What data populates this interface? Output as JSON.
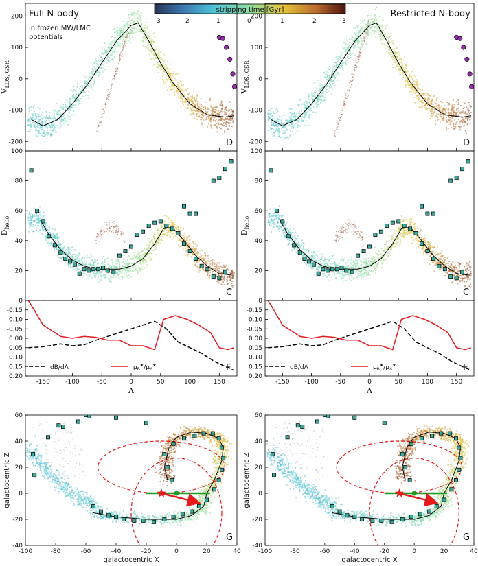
{
  "colorbar": {
    "title": "stripping time [Gyr]",
    "left_ticks": [
      "3",
      "2",
      "1"
    ],
    "right_ticks": [
      "0",
      "1",
      "2",
      "3"
    ],
    "stops": [
      "#2a3356",
      "#3c78b0",
      "#4cc0d8",
      "#8fe0a0",
      "#e6c23a",
      "#b86a2c",
      "#4a1410"
    ]
  },
  "columns": [
    {
      "id": "left",
      "title": "Full N-body",
      "subtitle_lines": [
        "in frozen MW/LMC",
        "potentials"
      ]
    },
    {
      "id": "right",
      "title": "Restricted N-body",
      "subtitle_lines": []
    }
  ],
  "panels": {
    "D": {
      "letter": "D",
      "ylabel": "V",
      "ylabel_sub": "LOS, GSR",
      "yticks": [
        -200,
        -100,
        0,
        100,
        200
      ]
    },
    "C": {
      "letter": "C",
      "ylabel": "D",
      "ylabel_sub": "helio",
      "yticks": [
        0,
        20,
        40,
        60,
        80,
        100
      ]
    },
    "F": {
      "letter": "F",
      "yticks": [
        -0.15,
        -0.1,
        -0.05,
        0.0,
        0.05,
        0.1,
        0.15,
        0.2
      ],
      "ytick_labels": [
        "-0.15",
        "-0.10",
        "-0.05",
        "0.00",
        "0.05",
        "0.10",
        "0.15",
        "0.20"
      ],
      "legend_dbdl": "dB/dΛ",
      "legend_mu": "μ",
      "xlabel": "Λ"
    },
    "G": {
      "letter": "G",
      "xlabel": "galactocentric X",
      "ylabel": "galactocentric Z",
      "xticks": [
        -100,
        -80,
        -60,
        -40,
        -20,
        0,
        20,
        40
      ],
      "yticks": [
        -40,
        -20,
        0,
        20,
        40,
        60
      ]
    }
  },
  "lambda_ticks": [
    -150,
    -100,
    -50,
    0,
    50,
    100,
    150
  ],
  "chart_data": [
    {
      "type": "scatter",
      "panel": "D",
      "title": "V_LOS,GSR vs Λ",
      "xlim": [
        -180,
        180
      ],
      "ylim": [
        -230,
        240
      ],
      "track_x": [
        -170,
        -150,
        -125,
        -100,
        -75,
        -50,
        -25,
        0,
        12,
        30,
        50,
        70,
        100,
        130,
        160,
        175
      ],
      "track_y": [
        -130,
        -150,
        -130,
        -80,
        -20,
        50,
        120,
        170,
        178,
        120,
        50,
        -10,
        -80,
        -115,
        -122,
        -118
      ],
      "observed_x": [
        150,
        156,
        162,
        168,
        173,
        176
      ],
      "observed_y": [
        132,
        128,
        100,
        62,
        15,
        -25
      ]
    },
    {
      "type": "scatter",
      "panel": "C",
      "title": "D_helio vs Λ",
      "xlim": [
        -180,
        180
      ],
      "ylim": [
        0,
        100
      ],
      "track_x": [
        -155,
        -140,
        -120,
        -100,
        -80,
        -60,
        -40,
        -20,
        0,
        20,
        40,
        55,
        70,
        90,
        110,
        130,
        150,
        170
      ],
      "track_y": [
        54,
        44,
        34,
        27,
        23,
        21,
        21,
        21,
        23,
        28,
        38,
        48,
        49,
        40,
        30,
        23,
        18,
        17
      ],
      "observed_x": [
        -170,
        -160,
        -150,
        -140,
        -130,
        -120,
        -112,
        -104,
        -96,
        -88,
        -80,
        -72,
        -64,
        -56,
        -48,
        -40,
        -30,
        -20,
        -10,
        0,
        10,
        20,
        30,
        40,
        50,
        60,
        70,
        80,
        90,
        100,
        110,
        120,
        130,
        140,
        150,
        160,
        170
      ],
      "observed_y": [
        87,
        60,
        53,
        43,
        37,
        32,
        28,
        26,
        24,
        18,
        21,
        20,
        21,
        21,
        22,
        20,
        19,
        30,
        33,
        36,
        44,
        46,
        50,
        52,
        53,
        50,
        48,
        45,
        38,
        33,
        28,
        23,
        21,
        16,
        15,
        19,
        93
      ],
      "upper_x": [
        90,
        100,
        110,
        140,
        150,
        160,
        170
      ],
      "upper_y": [
        63,
        58,
        58,
        80,
        82,
        88,
        93
      ]
    },
    {
      "type": "line",
      "panel": "F",
      "xlim": [
        -180,
        180
      ],
      "ylim": [
        0.2,
        -0.2
      ],
      "series": [
        {
          "name": "dB/dΛ",
          "style": "dashed",
          "color": "#000000",
          "x": [
            -175,
            -150,
            -120,
            -100,
            -80,
            -60,
            -40,
            -20,
            0,
            20,
            40,
            60,
            80,
            100,
            120,
            140,
            160,
            175
          ],
          "y": [
            0.05,
            0.045,
            0.03,
            0.04,
            0.035,
            0.01,
            -0.01,
            -0.03,
            -0.05,
            -0.07,
            -0.09,
            -0.05,
            0.02,
            0.05,
            0.08,
            0.12,
            0.15,
            0.17
          ]
        },
        {
          "name": "μB*/μΛ*",
          "style": "solid",
          "color": "#e41a1c",
          "x": [
            -175,
            -165,
            -150,
            -135,
            -120,
            -100,
            -80,
            -60,
            -40,
            -20,
            0,
            20,
            40,
            55,
            75,
            95,
            115,
            135,
            150,
            165,
            175
          ],
          "y": [
            -0.2,
            -0.15,
            -0.07,
            -0.04,
            -0.01,
            0.0,
            -0.01,
            -0.005,
            0.01,
            0.01,
            0.04,
            0.04,
            0.06,
            -0.1,
            -0.12,
            -0.1,
            -0.07,
            -0.03,
            0.05,
            0.06,
            0.05
          ]
        }
      ]
    },
    {
      "type": "scatter",
      "panel": "G",
      "title": "galactocentric Z vs galactocentric X",
      "xlim": [
        -100,
        40
      ],
      "ylim": [
        -40,
        60
      ],
      "track_x": [
        -55,
        -40,
        -20,
        0,
        10,
        18,
        20,
        25,
        30,
        31,
        28,
        20,
        10,
        0,
        -5,
        -8,
        -6
      ],
      "track_y": [
        -15,
        -18,
        -20,
        -20,
        -17,
        -10,
        0,
        10,
        25,
        35,
        42,
        46,
        47,
        43,
        35,
        20,
        10
      ],
      "observed_x": [
        -95,
        -94,
        -85,
        -75,
        -65,
        -58,
        -55,
        -50,
        -45,
        -40,
        -35,
        -28,
        -22,
        -15,
        -8,
        -2,
        4,
        10,
        15,
        20,
        25,
        28,
        30,
        31,
        30,
        28,
        24,
        18,
        12,
        5,
        -2,
        -8,
        -6,
        -3,
        -40,
        -20,
        -60,
        -78
      ],
      "observed_y": [
        30,
        14,
        43,
        51,
        55,
        59,
        -10,
        -14,
        -17,
        -18,
        -20,
        -21,
        -21,
        -22,
        -20,
        -18,
        -16,
        -14,
        -10,
        -5,
        3,
        10,
        18,
        27,
        35,
        42,
        46,
        46,
        44,
        42,
        38,
        30,
        20,
        10,
        58,
        54,
        60,
        52
      ],
      "markers": {
        "red_star": [
          -10,
          0
        ],
        "green_dot": [
          0,
          0
        ],
        "green_bar": [
          -20,
          22
        ]
      }
    }
  ]
}
